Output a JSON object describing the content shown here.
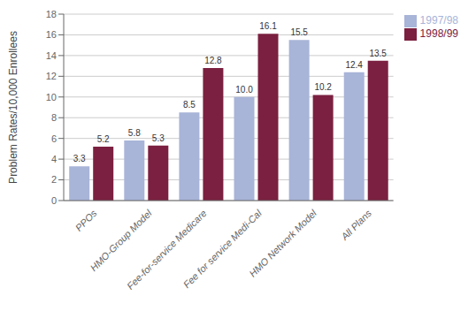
{
  "chart_data": {
    "type": "bar",
    "categories": [
      "PPOs",
      "HMO-Group Model",
      "Fee-for-service Medicare",
      "Fee for service Medi-Cal",
      "HMO Network Model",
      "All Plans"
    ],
    "series": [
      {
        "name": "1997/98",
        "color": "#a8b4d8",
        "values": [
          3.3,
          5.8,
          8.5,
          10.0,
          15.5,
          12.4
        ],
        "value_labels": [
          "3.3",
          "5.8",
          "8.5",
          "10.0",
          "15.5",
          "12.4"
        ]
      },
      {
        "name": "1998/99",
        "color": "#7b2040",
        "values": [
          5.2,
          5.3,
          12.8,
          16.1,
          10.2,
          13.5
        ],
        "value_labels": [
          "5.2",
          "5.3",
          "12.8",
          "16.1",
          "10.2",
          "13.5"
        ]
      }
    ],
    "ylabel": "Problem Rates/10,000 Enrollees",
    "ylim": [
      0,
      18
    ],
    "yticks": [
      0,
      2,
      4,
      6,
      8,
      10,
      12,
      14,
      16,
      18
    ],
    "grid": true,
    "legend": "right",
    "data_labels": true
  }
}
